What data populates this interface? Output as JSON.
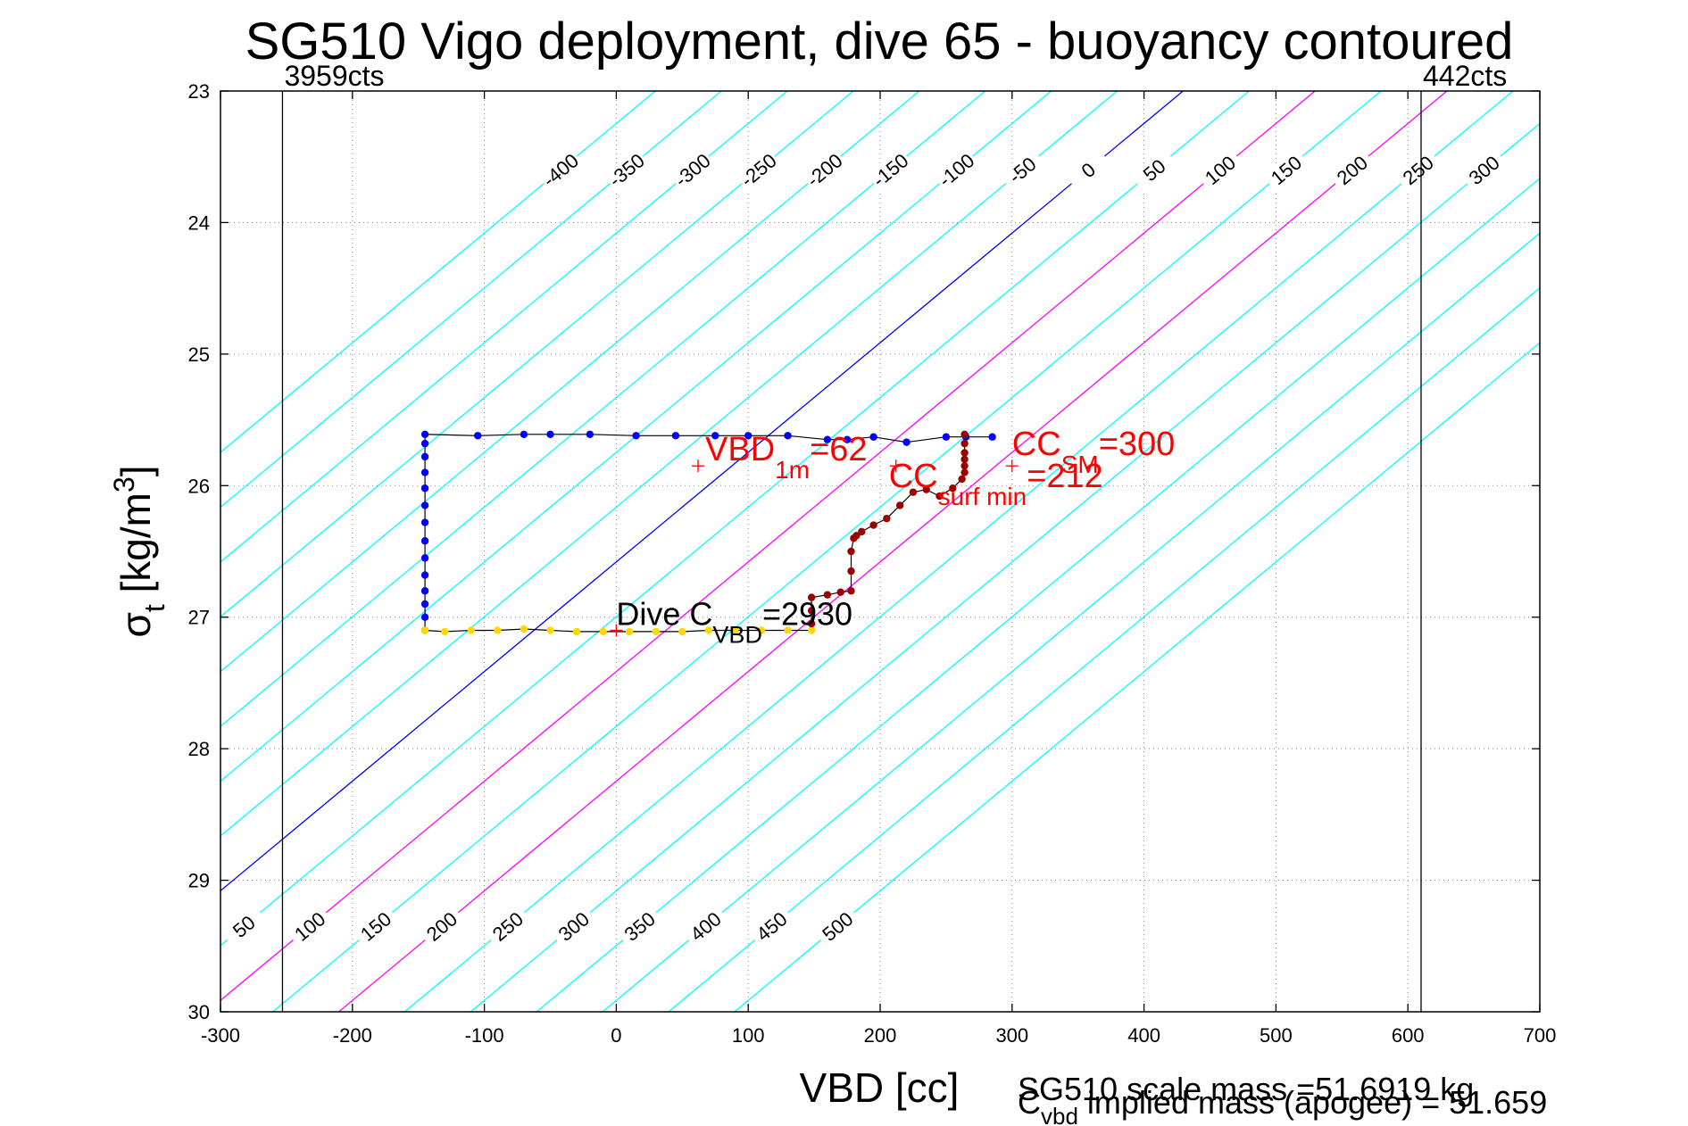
{
  "chart_data": {
    "type": "scatter",
    "title": "SG510 Vigo deployment, dive 65 - buoyancy contoured",
    "xlabel": "VBD [cc]",
    "ylabel": "σ_t [kg/m^3]",
    "xlim": [
      -300,
      700
    ],
    "ylim": [
      23,
      30
    ],
    "y_reversed": true,
    "grid": "dotted",
    "x_ticks": [
      -300,
      -200,
      -100,
      0,
      100,
      200,
      300,
      400,
      500,
      600,
      700
    ],
    "y_ticks": [
      23,
      24,
      25,
      26,
      27,
      28,
      29,
      30
    ],
    "buoyancy_contours": {
      "slope_cc_per_sigma": 120,
      "levels": [
        -400,
        -350,
        -300,
        -250,
        -200,
        -150,
        -100,
        -50,
        0,
        50,
        100,
        150,
        200,
        250,
        300,
        350,
        400,
        450,
        500
      ],
      "zero_level_color": "#0000ff",
      "highlight_levels": [
        100,
        200
      ],
      "highlight_color": "#ff00ff",
      "other_color": "#00ffff",
      "top_labels": [
        "-400",
        "-350",
        "-300",
        "-250",
        "-200",
        "-150",
        "-100",
        "-50",
        "0",
        "50",
        "100",
        "150",
        "200",
        "250",
        "300",
        "350",
        "400",
        "450",
        "500"
      ],
      "bottom_labels": [
        "-150",
        "-100",
        "-50",
        "0",
        "50",
        "100",
        "150",
        "200",
        "250",
        "300",
        "350",
        "400",
        "450",
        "500"
      ]
    },
    "vertical_limits": [
      {
        "x": -253,
        "label": "3959cts"
      },
      {
        "x": 610,
        "label": "442cts"
      }
    ],
    "series": [
      {
        "color": "#0000ff",
        "x": [
          285,
          265,
          250,
          220,
          195,
          175,
          160,
          130,
          100,
          75,
          45,
          15,
          -20,
          -50,
          -70,
          -105,
          -145,
          -145,
          -145,
          -145,
          -145,
          -145,
          -145,
          -145,
          -145,
          -145,
          -145,
          -145,
          -145,
          -145
        ],
        "y": [
          25.63,
          25.63,
          25.63,
          25.67,
          25.63,
          25.65,
          25.65,
          25.62,
          25.62,
          25.62,
          25.62,
          25.62,
          25.61,
          25.61,
          25.61,
          25.62,
          25.61,
          25.68,
          25.78,
          25.9,
          26.02,
          26.15,
          26.28,
          26.42,
          26.55,
          26.68,
          26.8,
          26.9,
          27.0,
          27.1
        ]
      },
      {
        "color": "#ffd700",
        "x": [
          -145,
          -130,
          -110,
          -90,
          -70,
          -50,
          -30,
          -10,
          10,
          30,
          50,
          70,
          90,
          110,
          130,
          148
        ],
        "y": [
          27.1,
          27.11,
          27.1,
          27.1,
          27.09,
          27.1,
          27.11,
          27.11,
          27.11,
          27.11,
          27.11,
          27.1,
          27.1,
          27.1,
          27.1,
          27.1
        ]
      },
      {
        "color": "#990000",
        "x": [
          148,
          148,
          148,
          160,
          170,
          178,
          178,
          178,
          180,
          182,
          186,
          195,
          205,
          215,
          225,
          235,
          245,
          255,
          262,
          264,
          264,
          264,
          264,
          264,
          264
        ],
        "y": [
          27.05,
          26.95,
          26.85,
          26.83,
          26.81,
          26.8,
          26.65,
          26.5,
          26.4,
          26.38,
          26.35,
          26.3,
          26.25,
          26.15,
          26.05,
          26.03,
          26.08,
          26.02,
          25.95,
          25.9,
          25.85,
          25.8,
          25.75,
          25.68,
          25.61
        ]
      }
    ],
    "markers": [
      {
        "x": 62,
        "y": 25.85,
        "label_main": "VBD",
        "label_sub": "1m",
        "label_tail": "=62"
      },
      {
        "x": 300,
        "y": 25.85,
        "label_main": "CC",
        "label_sub": "SM",
        "label_tail": "=300"
      },
      {
        "x": 212,
        "y": 25.85,
        "label_main": "CC",
        "label_sub": "surf min",
        "label_tail": "=212"
      },
      {
        "x": 0,
        "y": 27.1,
        "label_main": "Dive C",
        "label_sub": "VBD",
        "label_tail": "=2930"
      }
    ],
    "footer": {
      "line1": "SG510 scale mass =51.6919 kg",
      "line2_main": "C",
      "line2_sub": "vbd",
      "line2_tail": " implied mass (apogee) = 51.659"
    }
  }
}
